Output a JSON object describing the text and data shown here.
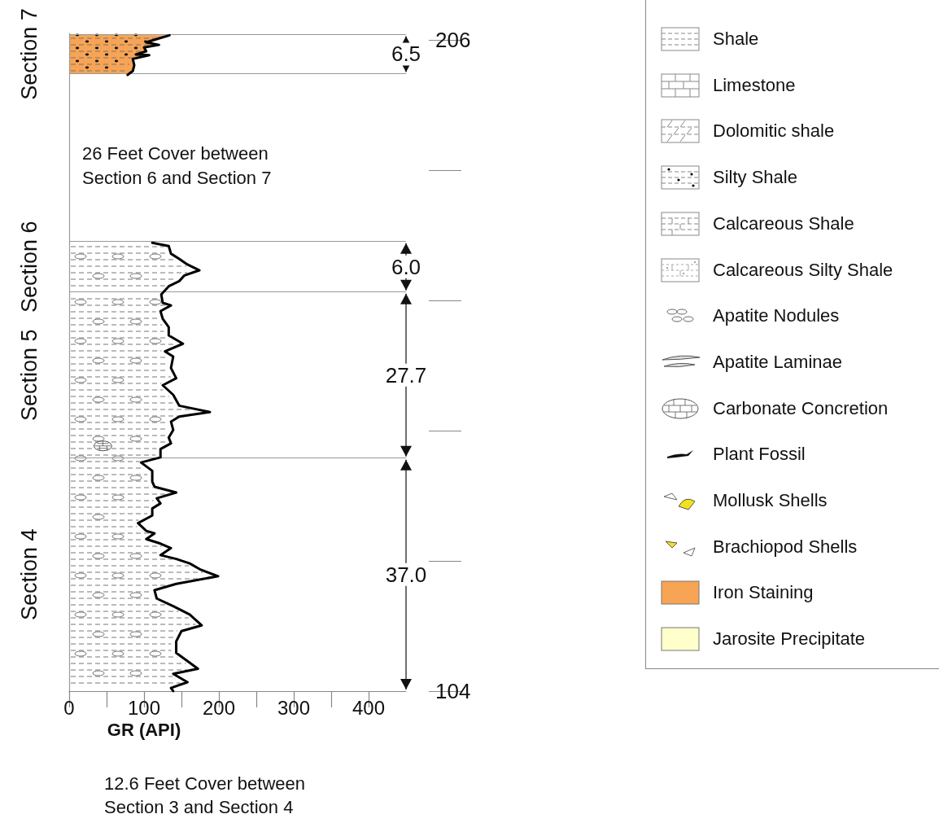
{
  "chart_data": {
    "type": "line",
    "xlabel": "GR (API)",
    "xlim": [
      0,
      450
    ],
    "xticks": [
      0,
      100,
      200,
      300,
      400
    ],
    "ylim": [
      104,
      207
    ],
    "yticks": [
      104,
      206
    ],
    "tick_labels": true,
    "marker": "none",
    "line_style": "solid",
    "series": [
      {
        "color": "#000000",
        "x": [
          134,
          117,
          103,
          120,
          100,
          103,
          89,
          107,
          85,
          87,
          85,
          78
        ],
        "values": [
          206.7,
          206.1,
          205.6,
          205.2,
          204.8,
          204.2,
          203.7,
          203.6,
          203.0,
          202.0,
          201.1,
          200.5
        ]
      },
      {
        "color": "#000000",
        "x": [
          111,
          133,
          136,
          147,
          158,
          174,
          154,
          147,
          133,
          123,
          125,
          136,
          122,
          125,
          133,
          133,
          152,
          128,
          139,
          136,
          143,
          125,
          139,
          147,
          188,
          147,
          136,
          139,
          133,
          136,
          122,
          122,
          96,
          111,
          111,
          114,
          143,
          117,
          122,
          111,
          111,
          92,
          103,
          114,
          103,
          122,
          136,
          122,
          143,
          161,
          176,
          199,
          143,
          114,
          117,
          139,
          161,
          177,
          150,
          143,
          143,
          172,
          139,
          158,
          136,
          139
        ],
        "values": [
          174.2,
          173.7,
          172.5,
          171.7,
          170.8,
          169.9,
          169.1,
          168.2,
          167.4,
          166.1,
          164.8,
          164.4,
          163.5,
          162.3,
          161.0,
          159.7,
          158.4,
          157.2,
          156.4,
          154.6,
          153.0,
          151.9,
          150.4,
          148.7,
          147.7,
          147.0,
          146.2,
          144.9,
          143.7,
          142.8,
          141.9,
          140.6,
          139.8,
          138.5,
          136.8,
          136.0,
          135.1,
          134.2,
          133.4,
          132.6,
          131.5,
          130.3,
          129.1,
          128.7,
          127.8,
          127.1,
          126.4,
          125.3,
          124.7,
          124.0,
          123.0,
          122.0,
          120.8,
          119.8,
          118.5,
          117.3,
          116.0,
          114.3,
          113.4,
          111.8,
          110.0,
          107.5,
          106.7,
          105.4,
          104.5,
          104.0
        ]
      }
    ],
    "ref_lines": [
      {
        "axis": "y",
        "value": 206.8,
        "color": "#999999"
      },
      {
        "axis": "y",
        "value": 200.7,
        "color": "#999999"
      },
      {
        "axis": "y",
        "value": 174.4,
        "color": "#999999"
      },
      {
        "axis": "y",
        "value": 166.5,
        "color": "#999999"
      },
      {
        "axis": "y",
        "value": 140.5,
        "color": "#999999"
      }
    ],
    "annotations": [
      "Section 7",
      "Section 6",
      "Section 5",
      "Section 4",
      "6.5",
      "6.0",
      "27.7",
      "37.0",
      "26 Feet Cover between\nSection 6 and Section 7",
      "12.6 Feet Cover between\nSection 3 and Section 4",
      "Shale",
      "Limestone",
      "Dolomitic shale",
      "Silty Shale",
      "Calcareous Shale",
      "Calcareous Silty Shale",
      "Apatite Nodules",
      "Apatite Laminae",
      "Carbonate Concretion",
      "Plant Fossil",
      "Mollusk Shells",
      "Brachiopod Shells",
      "Iron Staining",
      "Jarosite Precipitate"
    ]
  }
}
